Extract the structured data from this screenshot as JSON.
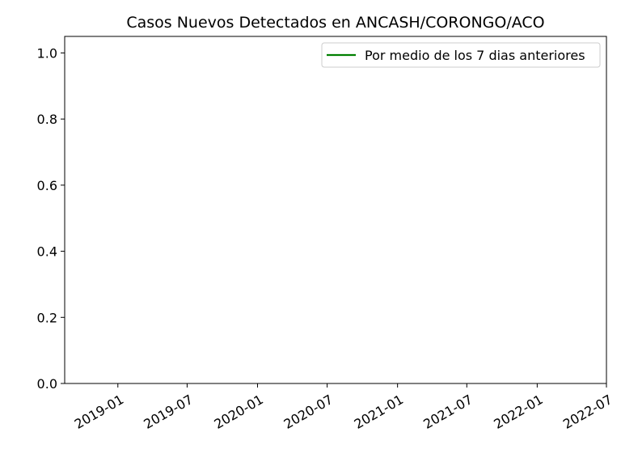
{
  "chart_data": {
    "type": "line",
    "title": "Casos Nuevos Detectados en ANCASH/CORONGO/ACO",
    "xlabel": "",
    "ylabel": "",
    "x_type": "date",
    "xlim": [
      "2018-08-15",
      "2022-07-01"
    ],
    "ylim": [
      0,
      1.05
    ],
    "x_ticks": [
      "2019-01",
      "2019-07",
      "2020-01",
      "2020-07",
      "2021-01",
      "2021-07",
      "2022-01",
      "2022-07"
    ],
    "y_ticks": [
      "0.0",
      "0.2",
      "0.4",
      "0.6",
      "0.8",
      "1.0"
    ],
    "grid": false,
    "legend_position": "upper right",
    "series": [
      {
        "name": "Por medio de los 7 dias anteriores",
        "color": "#008000",
        "x": [],
        "y": []
      }
    ]
  }
}
